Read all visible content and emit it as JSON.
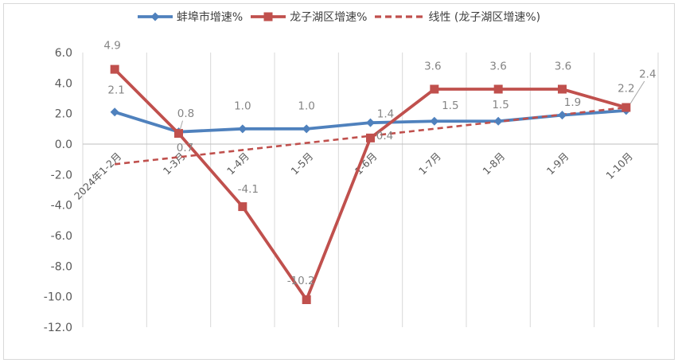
{
  "chart_data": {
    "type": "line",
    "title": "",
    "categories": [
      "2024年1-2月",
      "1-3月",
      "1-4月",
      "1-5月",
      "1-6月",
      "1-7月",
      "1-8月",
      "1-9月",
      "1-10月"
    ],
    "series": [
      {
        "name": "蚌埠市增速%",
        "color": "#4f81bd",
        "marker": "diamond",
        "values": [
          2.1,
          0.8,
          1.0,
          1.0,
          1.4,
          1.5,
          1.5,
          1.9,
          2.2
        ]
      },
      {
        "name": "龙子湖区增速%",
        "color": "#c0504d",
        "marker": "square",
        "values": [
          4.9,
          0.7,
          -4.1,
          -10.2,
          0.4,
          3.6,
          3.6,
          3.6,
          2.4
        ]
      }
    ],
    "trendline": {
      "name": "线性 (龙子湖区增速%)",
      "color": "#c0504d",
      "style": "dashed",
      "start_value": -1.32,
      "end_value": 2.4
    },
    "y_axis": {
      "min": -12.0,
      "max": 6.0,
      "step": 2.0,
      "tick_labels": [
        "6.0",
        "4.0",
        "2.0",
        "0.0",
        "-2.0",
        "-4.0",
        "-6.0",
        "-8.0",
        "-10.0",
        "-12.0"
      ]
    },
    "grid": "vertical-only",
    "legend_position": "top",
    "colors": {
      "gridline": "#d9d9d9",
      "axis_line": "#bfbfbf",
      "axis_text": "#595959",
      "data_label": "#858585",
      "leader_line": "#a6a6a6"
    },
    "label_offsets": [
      [
        [
          2,
          -28
        ],
        [
          9,
          -23
        ],
        [
          0,
          -29
        ],
        [
          0,
          -29
        ],
        [
          19,
          -11
        ],
        [
          20,
          -20
        ],
        [
          3,
          -21
        ],
        [
          13,
          -16
        ],
        [
          0,
          -28
        ]
      ],
      [
        [
          -3,
          -30
        ],
        [
          8,
          18
        ],
        [
          7,
          -22
        ],
        [
          -7,
          -24
        ],
        [
          18,
          -3
        ],
        [
          -2,
          -29
        ],
        [
          0,
          -29
        ],
        [
          1,
          -29
        ],
        [
          27,
          -42
        ]
      ]
    ],
    "leader_lines": [
      {
        "series": 0,
        "point": 1
      },
      {
        "series": 1,
        "point": 8
      }
    ]
  }
}
